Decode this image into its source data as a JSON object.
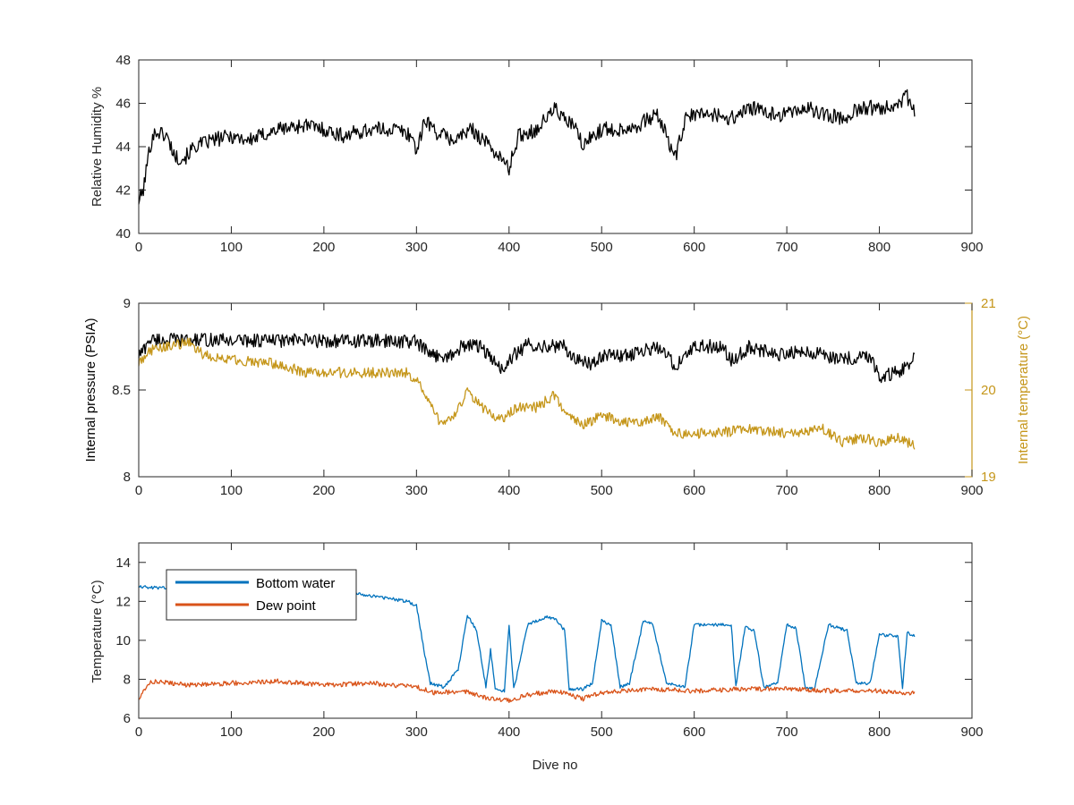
{
  "chart_data": [
    {
      "type": "line",
      "title": "",
      "xlabel": "",
      "ylabel": "Relative Humidity %",
      "xlim": [
        0,
        900
      ],
      "ylim": [
        40,
        48
      ],
      "x_ticks": [
        "0",
        "100",
        "200",
        "300",
        "400",
        "500",
        "600",
        "700",
        "800",
        "900"
      ],
      "y_ticks": [
        "40",
        "42",
        "44",
        "46",
        "48"
      ],
      "grid": false,
      "series": [
        {
          "color": "#000000",
          "x": [
            0,
            5,
            10,
            15,
            20,
            30,
            40,
            50,
            60,
            80,
            100,
            120,
            150,
            180,
            200,
            220,
            250,
            280,
            295,
            300,
            310,
            320,
            340,
            360,
            380,
            390,
            400,
            410,
            430,
            450,
            460,
            470,
            480,
            490,
            500,
            520,
            540,
            560,
            570,
            580,
            590,
            600,
            620,
            640,
            660,
            680,
            700,
            720,
            740,
            760,
            780,
            800,
            820,
            830,
            838
          ],
          "y": [
            41.5,
            42.0,
            43.5,
            44.5,
            44.7,
            44.5,
            43.5,
            43.5,
            44.0,
            44.3,
            44.5,
            44.3,
            44.8,
            45.0,
            44.8,
            44.5,
            44.8,
            44.8,
            44.5,
            43.8,
            45.3,
            44.7,
            44.3,
            44.8,
            44.0,
            43.5,
            43.0,
            44.5,
            44.8,
            45.8,
            45.2,
            45.0,
            44.0,
            44.5,
            44.8,
            44.8,
            45.0,
            45.5,
            44.5,
            43.5,
            45.2,
            45.5,
            45.5,
            45.3,
            45.8,
            45.5,
            45.5,
            45.8,
            45.5,
            45.3,
            45.8,
            45.8,
            46.0,
            46.3,
            45.5
          ],
          "noise": 0.35
        }
      ]
    },
    {
      "type": "line",
      "title": "",
      "xlabel": "",
      "ylabel": "Internal pressure (PSIA)",
      "y2label": "Internal temperature (°C)",
      "xlim": [
        0,
        900
      ],
      "ylim": [
        8,
        9
      ],
      "y2lim": [
        19,
        21
      ],
      "x_ticks": [
        "0",
        "100",
        "200",
        "300",
        "400",
        "500",
        "600",
        "700",
        "800",
        "900"
      ],
      "y_ticks": [
        "8",
        "8.5",
        "9"
      ],
      "y2_ticks": [
        "19",
        "20",
        "21"
      ],
      "grid": false,
      "series": [
        {
          "color": "#000000",
          "axis": "left",
          "x": [
            0,
            8,
            10,
            298,
            305,
            315,
            340,
            350,
            370,
            385,
            395,
            405,
            420,
            460,
            470,
            490,
            500,
            530,
            560,
            580,
            600,
            630,
            640,
            660,
            690,
            700,
            720,
            740,
            760,
            790,
            800,
            820,
            838
          ],
          "y": [
            8.7,
            8.75,
            8.79,
            8.78,
            8.75,
            8.7,
            8.7,
            8.76,
            8.75,
            8.65,
            8.62,
            8.7,
            8.76,
            8.75,
            8.68,
            8.65,
            8.7,
            8.7,
            8.75,
            8.64,
            8.75,
            8.75,
            8.67,
            8.75,
            8.7,
            8.72,
            8.72,
            8.7,
            8.68,
            8.7,
            8.58,
            8.6,
            8.68
          ],
          "noise": 0.04
        },
        {
          "color": "#C5961A",
          "axis": "right",
          "x": [
            0,
            10,
            30,
            55,
            70,
            100,
            150,
            180,
            200,
            250,
            290,
            300,
            310,
            320,
            330,
            340,
            355,
            370,
            390,
            410,
            430,
            450,
            460,
            480,
            500,
            540,
            560,
            580,
            620,
            660,
            700,
            740,
            760,
            780,
            800,
            820,
            838
          ],
          "y": [
            20.3,
            20.45,
            20.5,
            20.55,
            20.4,
            20.35,
            20.3,
            20.2,
            20.2,
            20.2,
            20.2,
            20.1,
            19.95,
            19.7,
            19.6,
            19.7,
            19.98,
            19.8,
            19.65,
            19.8,
            19.8,
            19.95,
            19.7,
            19.6,
            19.7,
            19.6,
            19.7,
            19.5,
            19.5,
            19.55,
            19.5,
            19.55,
            19.4,
            19.45,
            19.4,
            19.45,
            19.35
          ],
          "noise": 0.06
        }
      ]
    },
    {
      "type": "line",
      "title": "",
      "xlabel": "Dive no",
      "ylabel": "Temperature (°C)",
      "xlim": [
        0,
        900
      ],
      "ylim": [
        6,
        15
      ],
      "x_ticks": [
        "0",
        "100",
        "200",
        "300",
        "400",
        "500",
        "600",
        "700",
        "800",
        "900"
      ],
      "y_ticks": [
        "6",
        "8",
        "10",
        "12",
        "14"
      ],
      "grid": false,
      "legend": "top-left",
      "series": [
        {
          "name": "Bottom water",
          "color": "#0072BD",
          "x": [
            0,
            10,
            20,
            50,
            100,
            150,
            200,
            250,
            290,
            300,
            310,
            315,
            330,
            345,
            355,
            365,
            375,
            380,
            385,
            395,
            400,
            405,
            410,
            420,
            440,
            450,
            460,
            465,
            480,
            490,
            500,
            510,
            520,
            530,
            545,
            555,
            570,
            590,
            600,
            620,
            640,
            645,
            655,
            665,
            675,
            690,
            700,
            710,
            720,
            730,
            745,
            765,
            775,
            790,
            800,
            820,
            825,
            830,
            838
          ],
          "y": [
            12.8,
            12.7,
            12.7,
            12.7,
            12.8,
            12.7,
            12.6,
            12.3,
            12.0,
            11.8,
            9.0,
            7.8,
            7.6,
            8.5,
            11.3,
            10.5,
            7.6,
            9.5,
            7.5,
            7.4,
            10.8,
            7.5,
            8.5,
            10.8,
            11.2,
            11.1,
            10.5,
            7.5,
            7.5,
            7.8,
            11.0,
            10.8,
            7.6,
            7.8,
            11.0,
            10.8,
            7.8,
            7.6,
            10.8,
            10.8,
            10.8,
            7.6,
            10.7,
            10.5,
            7.6,
            7.8,
            10.8,
            10.6,
            7.6,
            7.5,
            10.8,
            10.5,
            7.8,
            7.8,
            10.3,
            10.2,
            7.6,
            10.4,
            10.2
          ],
          "noise": 0.08
        },
        {
          "name": "Dew point",
          "color": "#D95319",
          "x": [
            0,
            10,
            20,
            50,
            100,
            150,
            200,
            250,
            300,
            320,
            350,
            380,
            400,
            420,
            450,
            480,
            500,
            550,
            600,
            650,
            700,
            750,
            800,
            838
          ],
          "y": [
            7.0,
            7.8,
            7.9,
            7.7,
            7.8,
            7.9,
            7.7,
            7.8,
            7.6,
            7.3,
            7.4,
            7.0,
            6.9,
            7.2,
            7.4,
            7.0,
            7.3,
            7.5,
            7.4,
            7.5,
            7.5,
            7.4,
            7.4,
            7.3
          ],
          "noise": 0.12
        }
      ]
    }
  ]
}
